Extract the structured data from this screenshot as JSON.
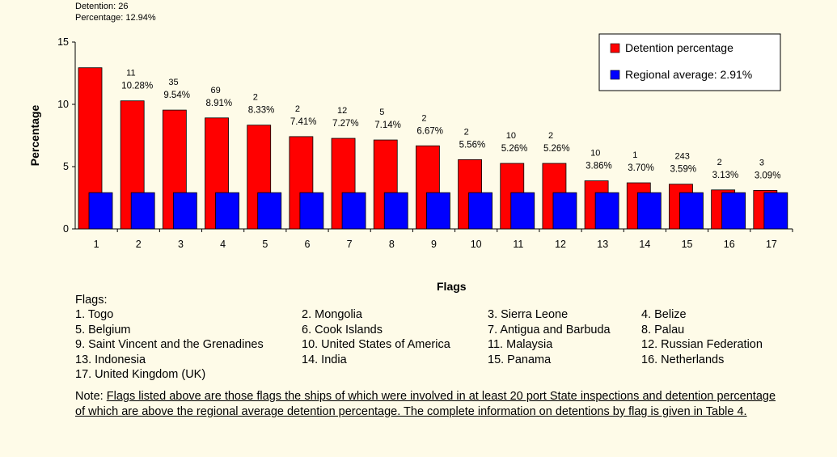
{
  "header": {
    "detention_line": "Detention: 26",
    "percentage_line": "Percentage: 12.94%"
  },
  "chart_data": {
    "type": "bar",
    "categories": [
      "1",
      "2",
      "3",
      "4",
      "5",
      "6",
      "7",
      "8",
      "9",
      "10",
      "11",
      "12",
      "13",
      "14",
      "15",
      "16",
      "17"
    ],
    "series": [
      {
        "name": "Detention percentage",
        "color": "#ff0000",
        "values": [
          12.94,
          10.28,
          9.54,
          8.91,
          8.33,
          7.41,
          7.27,
          7.14,
          6.67,
          5.56,
          5.26,
          5.26,
          3.86,
          3.7,
          3.59,
          3.13,
          3.09
        ]
      },
      {
        "name": "Regional average: 2.91%",
        "color": "#0000ff",
        "values": [
          2.91,
          2.91,
          2.91,
          2.91,
          2.91,
          2.91,
          2.91,
          2.91,
          2.91,
          2.91,
          2.91,
          2.91,
          2.91,
          2.91,
          2.91,
          2.91,
          2.91
        ]
      }
    ],
    "detention_counts": [
      "",
      "11",
      "35",
      "69",
      "2",
      "2",
      "12",
      "5",
      "2",
      "2",
      "10",
      "2",
      "10",
      "1",
      "243",
      "2",
      "3"
    ],
    "percent_labels": [
      "",
      "10.28%",
      "9.54%",
      "8.91%",
      "8.33%",
      "7.41%",
      "7.27%",
      "7.14%",
      "6.67%",
      "5.56%",
      "5.26%",
      "5.26%",
      "3.86%",
      "3.70%",
      "3.59%",
      "3.13%",
      "3.09%"
    ],
    "ylabel": "Percentage",
    "xlabel": "Flags",
    "ylim": [
      0,
      15
    ],
    "yticks": [
      "0",
      "5",
      "10",
      "15"
    ],
    "legend_position": "top-right"
  },
  "flags": {
    "heading": "Flags:",
    "items": [
      "1.  Togo",
      "2.  Mongolia",
      "3.  Sierra Leone",
      "4.  Belize",
      "5.  Belgium",
      "6.  Cook Islands",
      "7.  Antigua and Barbuda",
      "8.  Palau",
      "9.  Saint Vincent and the Grenadines",
      "10. United States of America",
      "11. Malaysia",
      "12. Russian Federation",
      "13. Indonesia",
      "14. India",
      "15. Panama",
      "16. Netherlands",
      "17. United Kingdom (UK)"
    ]
  },
  "note": {
    "label": "Note: ",
    "text": "Flags listed above are those flags the ships of which were involved in at least 20 port State inspections and detention percentage of which are above the regional average detention percentage. The complete information on detentions by flag is given in Table 4."
  }
}
